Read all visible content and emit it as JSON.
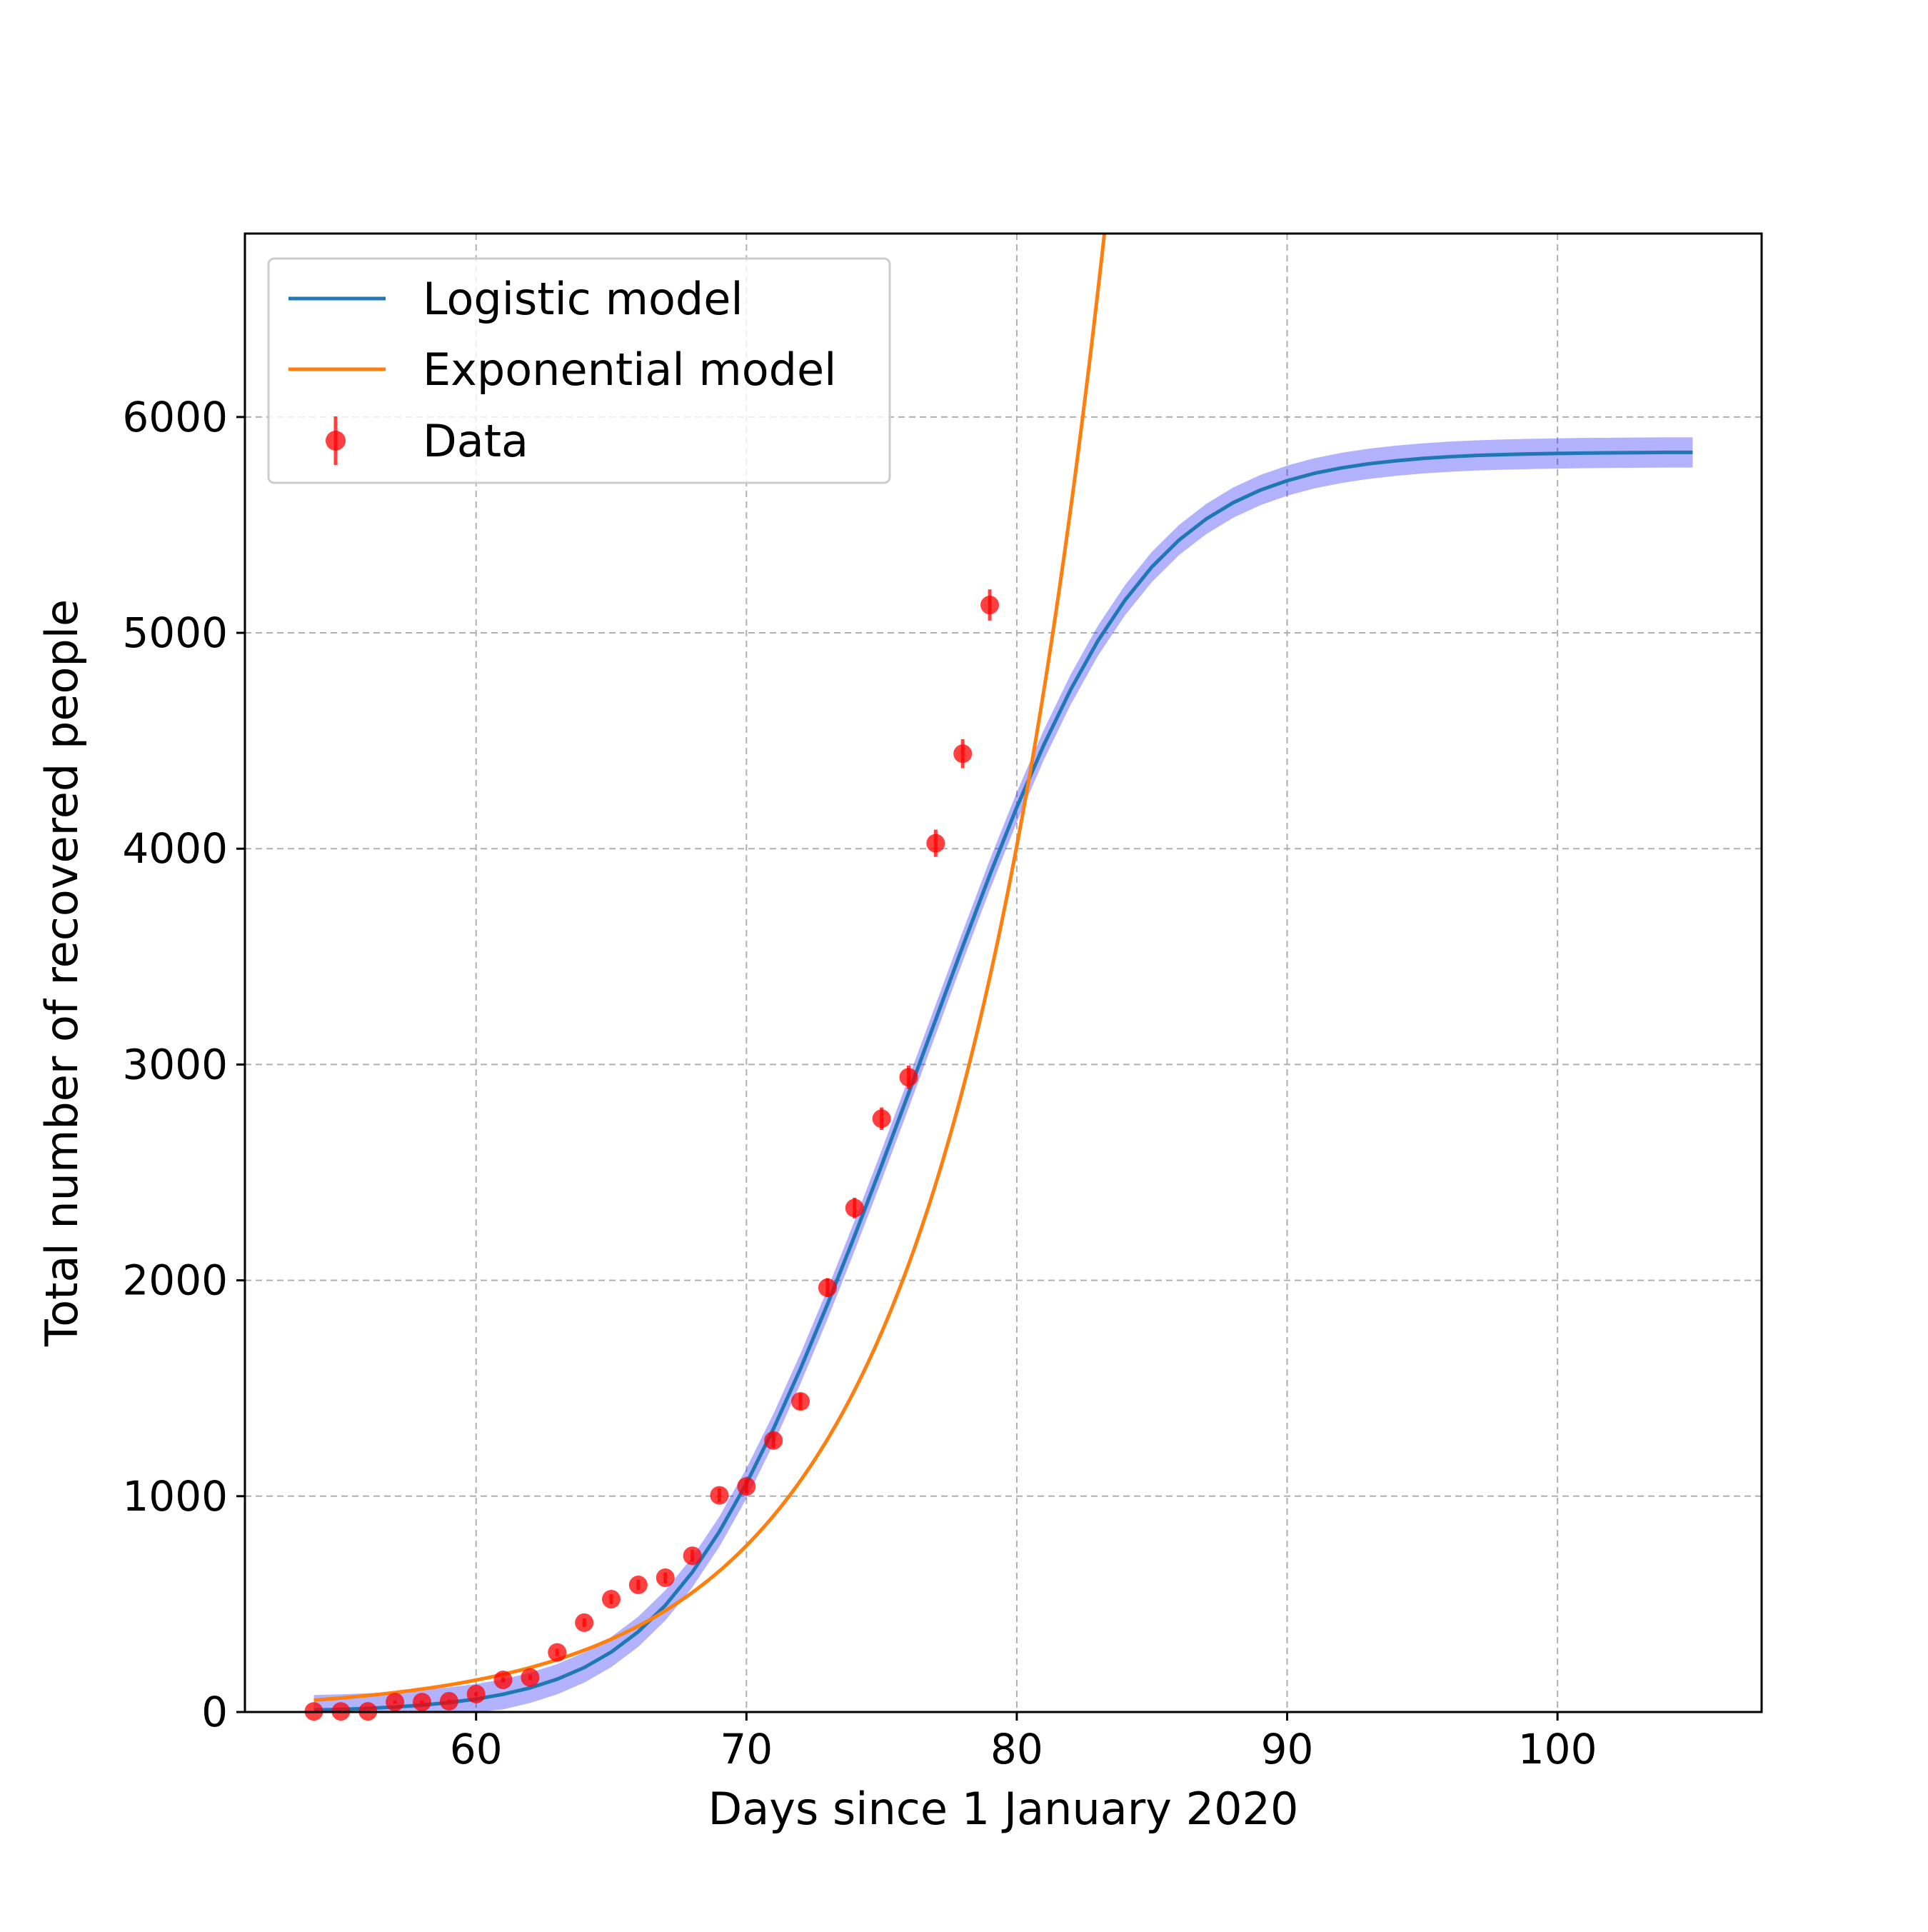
{
  "chart_data": {
    "type": "line",
    "title": "",
    "xlabel": "Days since 1 January 2020",
    "ylabel": "Total number of recovered people",
    "xlim": [
      51.45,
      107.55
    ],
    "ylim": [
      0,
      6850
    ],
    "xticks": [
      60,
      70,
      80,
      90,
      100
    ],
    "yticks": [
      0,
      1000,
      2000,
      3000,
      4000,
      5000,
      6000
    ],
    "grid": true,
    "legend_position": "upper-left",
    "colors": {
      "logistic": "#1f77b4",
      "exponential": "#ff7f0e",
      "data": "#ff0000",
      "band": "#0000ff"
    },
    "series": [
      {
        "name": "Logistic model",
        "kind": "line",
        "x": [
          54,
          55,
          56,
          57,
          58,
          59,
          60,
          61,
          62,
          63,
          64,
          65,
          66,
          67,
          68,
          69,
          70,
          71,
          72,
          73,
          74,
          75,
          76,
          77,
          78,
          79,
          80,
          81,
          82,
          83,
          84,
          85,
          86,
          87,
          88,
          89,
          90,
          91,
          92,
          93,
          94,
          95,
          96,
          97,
          98,
          99,
          100,
          101,
          102,
          103,
          104,
          105
        ],
        "y": [
          9,
          12,
          17,
          23,
          32,
          44,
          60,
          82,
          112,
          152,
          206,
          278,
          372,
          494,
          648,
          836,
          1059,
          1312,
          1591,
          1890,
          2206,
          2533,
          2868,
          3208,
          3547,
          3878,
          4192,
          4481,
          4739,
          4963,
          5151,
          5306,
          5430,
          5527,
          5603,
          5661,
          5705,
          5739,
          5764,
          5783,
          5797,
          5808,
          5816,
          5822,
          5826,
          5829,
          5831,
          5833,
          5834,
          5835,
          5836,
          5836
        ]
      },
      {
        "name": "Logistic model uncertainty",
        "kind": "band",
        "x_range": [
          54,
          105
        ],
        "half_width": 70
      },
      {
        "name": "Exponential model",
        "kind": "line",
        "x_range": [
          54,
          105
        ],
        "equation": "y = 55 * exp(0.165 * (x - 54))",
        "clip_to_ylim": true
      },
      {
        "name": "Data",
        "kind": "scatter_errorbar",
        "x": [
          54,
          55,
          56,
          57,
          58,
          59,
          60,
          61,
          62,
          63,
          64,
          65,
          66,
          67,
          68,
          69,
          70,
          71,
          72,
          73,
          74,
          75,
          76,
          77,
          78,
          79
        ],
        "y": [
          3,
          3,
          3,
          46,
          46,
          50,
          83,
          149,
          160,
          276,
          414,
          523,
          589,
          622,
          724,
          1004,
          1045,
          1258,
          1439,
          1966,
          2335,
          2749,
          2941,
          4025,
          4440,
          5129
        ],
        "yerr": [
          2,
          2,
          2,
          7,
          7,
          7,
          9,
          12,
          13,
          17,
          20,
          23,
          24,
          25,
          27,
          32,
          32,
          35,
          38,
          44,
          48,
          52,
          54,
          63,
          67,
          72
        ]
      }
    ]
  }
}
